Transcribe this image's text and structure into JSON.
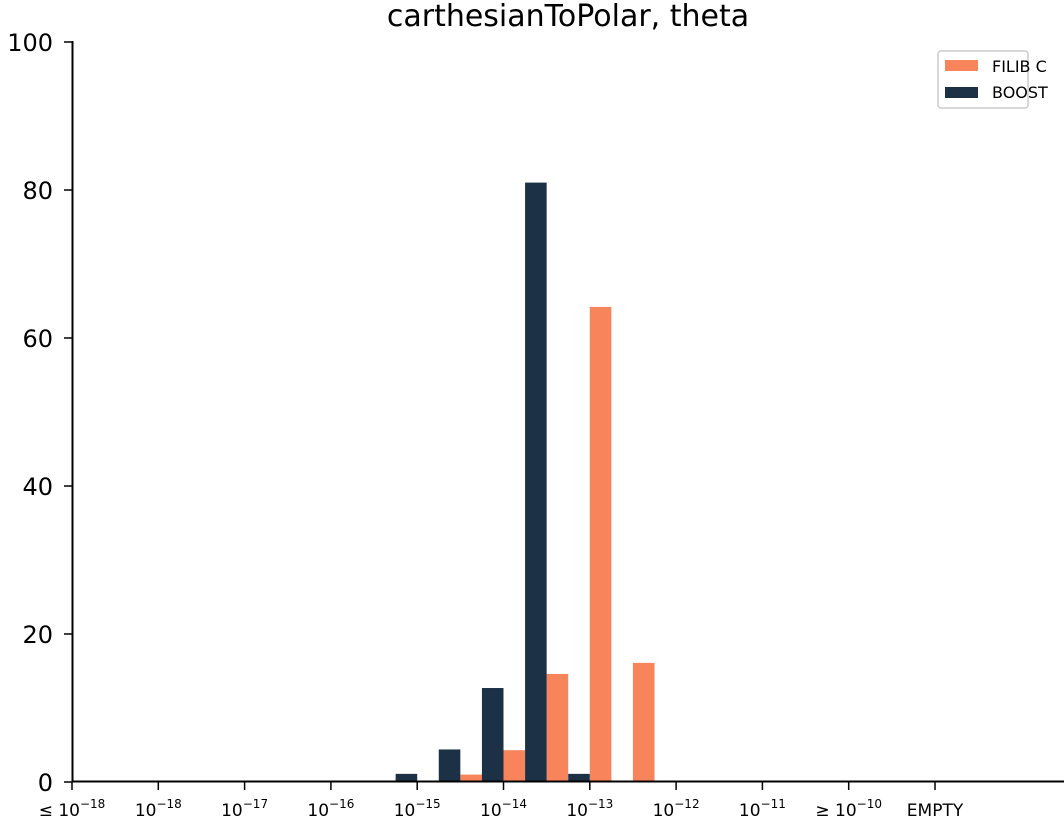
{
  "chart_data": {
    "type": "bar",
    "title": "carthesianToPolar, theta",
    "xlabel": "",
    "ylabel": "",
    "ylim": [
      0,
      100
    ],
    "yticks": [
      0,
      20,
      40,
      60,
      80,
      100
    ],
    "grid": false,
    "legend_position": "top-right",
    "categories": [
      "≤10−18",
      "10−18",
      "10−17",
      "10−16",
      "10−15",
      "10−14",
      "10−13",
      "10−12",
      "10−11",
      "≥10−10",
      "EMPTY"
    ],
    "category_labels": [
      {
        "prefix": "≤ ",
        "base": "10",
        "exp": "−18"
      },
      {
        "prefix": "",
        "base": "10",
        "exp": "−18"
      },
      {
        "prefix": "",
        "base": "10",
        "exp": "−17"
      },
      {
        "prefix": "",
        "base": "10",
        "exp": "−16"
      },
      {
        "prefix": "",
        "base": "10",
        "exp": "−15"
      },
      {
        "prefix": "",
        "base": "10",
        "exp": "−14"
      },
      {
        "prefix": "",
        "base": "10",
        "exp": "−13"
      },
      {
        "prefix": "",
        "base": "10",
        "exp": "−12"
      },
      {
        "prefix": "",
        "base": "10",
        "exp": "−11"
      },
      {
        "prefix": "≥ ",
        "base": "10",
        "exp": "−10"
      },
      {
        "prefix": "",
        "base": "EMPTY",
        "exp": ""
      }
    ],
    "series": [
      {
        "name": "FILIB C",
        "color": "#f7845a",
        "bars": [
          {
            "x": 4.5,
            "value": 1
          },
          {
            "x": 5.0,
            "value": 4.3
          },
          {
            "x": 5.5,
            "value": 14.6
          },
          {
            "x": 6.0,
            "value": 64.2
          },
          {
            "x": 6.5,
            "value": 16.1
          }
        ]
      },
      {
        "name": "BOOST",
        "color": "#1c3146",
        "bars": [
          {
            "x": 3.75,
            "value": 1.1
          },
          {
            "x": 4.25,
            "value": 4.4
          },
          {
            "x": 4.75,
            "value": 12.7
          },
          {
            "x": 5.25,
            "value": 81
          },
          {
            "x": 5.75,
            "value": 1.1
          }
        ]
      }
    ]
  }
}
